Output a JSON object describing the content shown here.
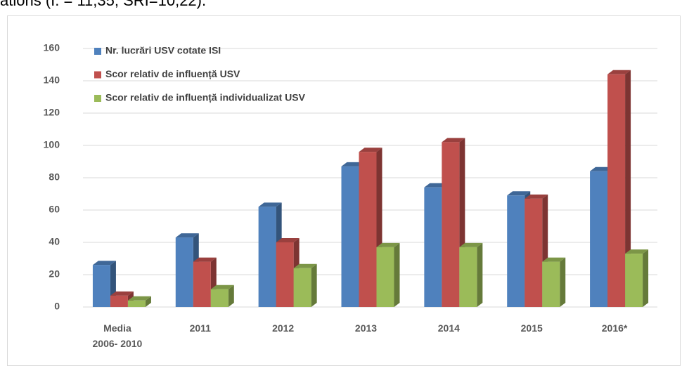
{
  "caption": "ations (I. = 11,35; SRI=10,22).",
  "chart_data": {
    "type": "bar3d",
    "categories": [
      "Media 2006- 2010",
      "2011",
      "2012",
      "2013",
      "2014",
      "2015",
      "2016*"
    ],
    "series": [
      {
        "name": "Nr. lucrări USV cotate ISI",
        "color": "#4f81bd",
        "values": [
          26,
          43,
          62,
          87,
          74,
          69,
          84
        ]
      },
      {
        "name": "Scor relativ de influență USV",
        "color": "#c0504d",
        "values": [
          7,
          28,
          40,
          96,
          102,
          67,
          144
        ]
      },
      {
        "name": "Scor relativ de influență individualizat USV",
        "color": "#9bbb59",
        "values": [
          4,
          11,
          24,
          37,
          37,
          28,
          33
        ]
      }
    ],
    "ylim": [
      0,
      160
    ],
    "yticks": [
      0,
      20,
      40,
      60,
      80,
      100,
      120,
      140,
      160
    ],
    "grid": true,
    "legend": "top-left"
  }
}
